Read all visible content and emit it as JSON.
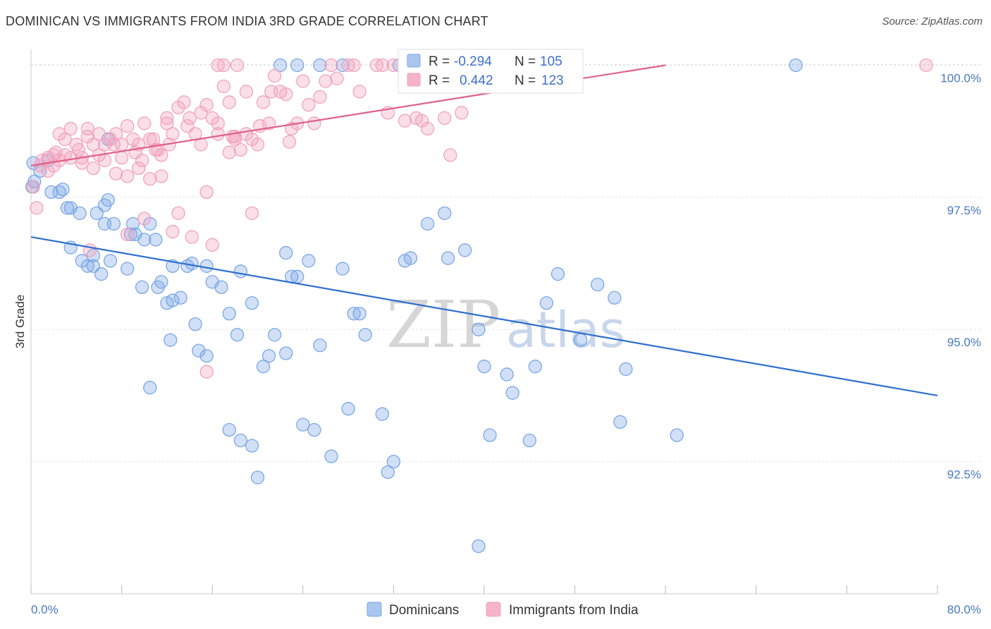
{
  "header": {
    "title": "DOMINICAN VS IMMIGRANTS FROM INDIA 3RD GRADE CORRELATION CHART",
    "source": "Source: ZipAtlas.com"
  },
  "watermark": {
    "zip": "ZIP",
    "atlas": "atlas"
  },
  "legend": {
    "r_label": "R =",
    "n_label": "N =",
    "rows": [
      {
        "r": "-0.294",
        "n": "105",
        "color": "#a9c6ee"
      },
      {
        "r": "0.442",
        "n": "123",
        "color": "#f5b3c8"
      }
    ]
  },
  "bottom_legend": [
    {
      "label": "Dominicans",
      "color": "#a9c6ee"
    },
    {
      "label": "Immigrants from India",
      "color": "#f5b3c8"
    }
  ],
  "chart_data": {
    "type": "scatter",
    "ylabel": "3rd Grade",
    "x_tick_labels": [
      "0.0%",
      "80.0%"
    ],
    "y_tick_labels": [
      "100.0%",
      "97.5%",
      "95.0%",
      "92.5%"
    ],
    "xlim": [
      0,
      80
    ],
    "ylim": [
      90.0,
      100.3
    ],
    "yticks": [
      100.0,
      97.5,
      95.0,
      92.5
    ],
    "grid": true,
    "series": [
      {
        "name": "Dominicans",
        "color": "#7aa7e6",
        "line_color": "#2e6fcf",
        "trend": {
          "x0": 0,
          "y0": 96.75,
          "x1": 80,
          "y1": 93.75
        },
        "points": [
          [
            0.2,
            98.15
          ],
          [
            0.8,
            98.0
          ],
          [
            0.3,
            97.8
          ],
          [
            1.5,
            98.2
          ],
          [
            1.8,
            97.6
          ],
          [
            2.5,
            97.6
          ],
          [
            2.8,
            97.65
          ],
          [
            3.2,
            97.3
          ],
          [
            3.5,
            97.3
          ],
          [
            4.3,
            97.2
          ],
          [
            6.8,
            97.45
          ],
          [
            6.5,
            97.35
          ],
          [
            5.8,
            97.2
          ],
          [
            7.3,
            97.0
          ],
          [
            9.0,
            97.0
          ],
          [
            9.2,
            96.8
          ],
          [
            10.0,
            96.7
          ],
          [
            10.5,
            97.0
          ],
          [
            6.5,
            97.0
          ],
          [
            3.5,
            96.55
          ],
          [
            4.5,
            96.3
          ],
          [
            5.0,
            96.2
          ],
          [
            5.5,
            96.4
          ],
          [
            6.2,
            96.05
          ],
          [
            7.0,
            96.3
          ],
          [
            8.5,
            96.15
          ],
          [
            9.8,
            95.8
          ],
          [
            11.5,
            95.9
          ],
          [
            11.2,
            95.8
          ],
          [
            12.0,
            95.5
          ],
          [
            12.5,
            95.55
          ],
          [
            13.2,
            95.6
          ],
          [
            13.8,
            96.2
          ],
          [
            14.2,
            96.25
          ],
          [
            15.5,
            96.2
          ],
          [
            16.8,
            95.8
          ],
          [
            16.0,
            95.9
          ],
          [
            17.5,
            95.3
          ],
          [
            18.5,
            96.1
          ],
          [
            18.2,
            94.9
          ],
          [
            19.5,
            95.5
          ],
          [
            20.5,
            94.3
          ],
          [
            21.0,
            94.5
          ],
          [
            21.5,
            94.9
          ],
          [
            23.0,
            96.0
          ],
          [
            23.5,
            96.0
          ],
          [
            22.5,
            96.45
          ],
          [
            24.5,
            96.3
          ],
          [
            25.5,
            94.7
          ],
          [
            27.5,
            96.15
          ],
          [
            28.5,
            95.3
          ],
          [
            29.0,
            95.3
          ],
          [
            29.5,
            94.9
          ],
          [
            31.0,
            93.4
          ],
          [
            32.0,
            92.5
          ],
          [
            33.0,
            96.3
          ],
          [
            33.5,
            96.35
          ],
          [
            35.0,
            97.0
          ],
          [
            36.5,
            97.2
          ],
          [
            36.8,
            96.35
          ],
          [
            38.3,
            96.5
          ],
          [
            39.5,
            95.0
          ],
          [
            40.0,
            94.3
          ],
          [
            40.5,
            93.0
          ],
          [
            42.0,
            94.15
          ],
          [
            42.5,
            93.8
          ],
          [
            44.5,
            94.3
          ],
          [
            44.0,
            92.9
          ],
          [
            45.5,
            95.5
          ],
          [
            46.5,
            96.05
          ],
          [
            48.5,
            94.8
          ],
          [
            50.0,
            95.85
          ],
          [
            51.5,
            95.6
          ],
          [
            52.0,
            93.25
          ],
          [
            52.5,
            94.25
          ],
          [
            57.0,
            93.0
          ],
          [
            6.8,
            98.6
          ],
          [
            12.5,
            96.2
          ],
          [
            12.3,
            94.8
          ],
          [
            14.5,
            95.1
          ],
          [
            14.8,
            94.6
          ],
          [
            15.5,
            94.5
          ],
          [
            17.5,
            93.1
          ],
          [
            18.5,
            92.9
          ],
          [
            19.5,
            92.8
          ],
          [
            20.0,
            92.2
          ],
          [
            22.5,
            94.55
          ],
          [
            24.0,
            93.2
          ],
          [
            25.0,
            93.1
          ],
          [
            26.5,
            92.6
          ],
          [
            28.0,
            93.5
          ],
          [
            31.5,
            92.3
          ],
          [
            39.5,
            90.9
          ],
          [
            10.5,
            93.9
          ],
          [
            11.0,
            96.7
          ],
          [
            8.8,
            96.8
          ],
          [
            5.5,
            96.2
          ],
          [
            22.0,
            100.0
          ],
          [
            23.5,
            100.0
          ],
          [
            25.5,
            100.0
          ],
          [
            27.5,
            100.0
          ],
          [
            32.5,
            100.0
          ],
          [
            67.5,
            100.0
          ],
          [
            0.1,
            97.7
          ]
        ]
      },
      {
        "name": "Immigrants from India",
        "color": "#f2a2bd",
        "line_color": "#e0608a",
        "trend": {
          "x0": 0,
          "y0": 98.1,
          "x1": 56,
          "y1": 100.0
        },
        "points": [
          [
            0.2,
            97.7
          ],
          [
            0.5,
            97.3
          ],
          [
            1.0,
            98.2
          ],
          [
            1.5,
            98.0
          ],
          [
            2.0,
            98.3
          ],
          [
            2.5,
            98.2
          ],
          [
            3.0,
            98.3
          ],
          [
            3.5,
            98.25
          ],
          [
            4.0,
            98.5
          ],
          [
            4.5,
            98.25
          ],
          [
            5.0,
            98.65
          ],
          [
            5.5,
            98.5
          ],
          [
            6.0,
            98.3
          ],
          [
            6.5,
            98.5
          ],
          [
            7.0,
            98.6
          ],
          [
            7.5,
            98.7
          ],
          [
            8.0,
            98.25
          ],
          [
            8.5,
            98.85
          ],
          [
            9.0,
            98.6
          ],
          [
            9.5,
            98.5
          ],
          [
            10.0,
            98.9
          ],
          [
            10.5,
            98.6
          ],
          [
            11.0,
            98.4
          ],
          [
            11.5,
            98.3
          ],
          [
            12.0,
            99.0
          ],
          [
            12.5,
            98.7
          ],
          [
            13.0,
            99.2
          ],
          [
            13.5,
            99.3
          ],
          [
            14.0,
            99.0
          ],
          [
            14.5,
            98.7
          ],
          [
            15.0,
            98.5
          ],
          [
            15.5,
            99.25
          ],
          [
            16.0,
            99.0
          ],
          [
            16.5,
            98.9
          ],
          [
            17.0,
            99.6
          ],
          [
            17.5,
            99.3
          ],
          [
            18.0,
            98.65
          ],
          [
            18.5,
            98.4
          ],
          [
            19.0,
            99.5
          ],
          [
            19.5,
            98.6
          ],
          [
            20.0,
            98.5
          ],
          [
            20.5,
            99.3
          ],
          [
            21.0,
            98.9
          ],
          [
            21.5,
            99.8
          ],
          [
            22.0,
            99.5
          ],
          [
            23.0,
            98.8
          ],
          [
            23.5,
            98.9
          ],
          [
            24.0,
            99.7
          ],
          [
            25.0,
            98.9
          ],
          [
            25.5,
            99.4
          ],
          [
            26.0,
            99.7
          ],
          [
            27.0,
            99.75
          ],
          [
            28.0,
            100.0
          ],
          [
            29.0,
            99.5
          ],
          [
            31.5,
            99.1
          ],
          [
            33.0,
            98.95
          ],
          [
            34.0,
            99.0
          ],
          [
            35.0,
            98.8
          ],
          [
            36.0,
            99.8
          ],
          [
            37.0,
            98.3
          ],
          [
            38.0,
            99.1
          ],
          [
            39.5,
            100.0
          ],
          [
            2.5,
            98.7
          ],
          [
            3.5,
            98.8
          ],
          [
            4.5,
            98.15
          ],
          [
            5.5,
            98.05
          ],
          [
            6.5,
            98.2
          ],
          [
            7.5,
            97.95
          ],
          [
            8.5,
            97.9
          ],
          [
            9.5,
            98.05
          ],
          [
            10.5,
            97.85
          ],
          [
            11.5,
            97.9
          ],
          [
            13.0,
            97.2
          ],
          [
            15.5,
            97.6
          ],
          [
            17.5,
            98.35
          ],
          [
            18.0,
            98.6
          ],
          [
            8.5,
            96.8
          ],
          [
            10.0,
            97.1
          ],
          [
            12.5,
            96.85
          ],
          [
            16.0,
            96.6
          ],
          [
            19.5,
            97.2
          ],
          [
            22.5,
            99.45
          ],
          [
            24.5,
            99.25
          ],
          [
            0.8,
            98.1
          ],
          [
            1.5,
            98.25
          ],
          [
            2.2,
            98.35
          ],
          [
            3.0,
            98.6
          ],
          [
            4.2,
            98.4
          ],
          [
            5.0,
            98.8
          ],
          [
            6.0,
            98.7
          ],
          [
            7.3,
            98.5
          ],
          [
            8.0,
            98.5
          ],
          [
            9.2,
            98.35
          ],
          [
            10.8,
            98.6
          ],
          [
            12.2,
            98.5
          ],
          [
            13.8,
            98.85
          ],
          [
            15.0,
            99.1
          ],
          [
            16.5,
            98.7
          ],
          [
            17.8,
            98.65
          ],
          [
            19.0,
            98.7
          ],
          [
            20.2,
            98.85
          ],
          [
            21.2,
            99.5
          ],
          [
            22.8,
            98.55
          ],
          [
            26.5,
            100.0
          ],
          [
            28.5,
            100.0
          ],
          [
            30.5,
            100.0
          ],
          [
            31.0,
            100.0
          ],
          [
            32.0,
            100.0
          ],
          [
            33.5,
            100.0
          ],
          [
            35.5,
            100.0
          ],
          [
            36.5,
            100.0
          ],
          [
            16.5,
            100.0
          ],
          [
            17.0,
            100.0
          ],
          [
            18.2,
            100.0
          ],
          [
            79.0,
            100.0
          ],
          [
            14.2,
            96.75
          ],
          [
            12.0,
            98.9
          ],
          [
            2.0,
            98.1
          ],
          [
            15.5,
            94.2
          ],
          [
            36.5,
            99.0
          ],
          [
            34.5,
            98.95
          ],
          [
            5.2,
            96.5
          ],
          [
            11.2,
            98.4
          ],
          [
            9.8,
            98.2
          ]
        ]
      }
    ]
  }
}
